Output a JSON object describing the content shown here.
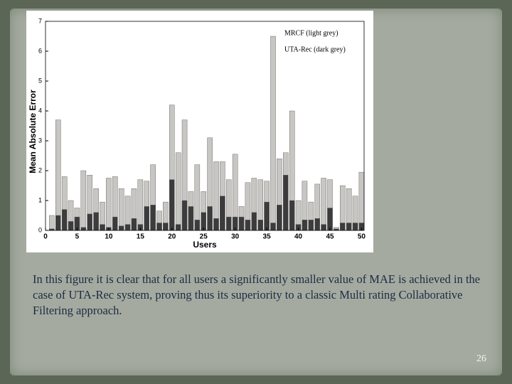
{
  "chart_data": {
    "type": "bar",
    "xlabel": "Users",
    "ylabel": "Mean Absolute Error",
    "x": [
      1,
      2,
      3,
      4,
      5,
      6,
      7,
      8,
      9,
      10,
      11,
      12,
      13,
      14,
      15,
      16,
      17,
      18,
      19,
      20,
      21,
      22,
      23,
      24,
      25,
      26,
      27,
      28,
      29,
      30,
      31,
      32,
      33,
      34,
      35,
      36,
      37,
      38,
      39,
      40,
      41,
      42,
      43,
      44,
      45,
      46,
      47,
      48,
      49,
      50
    ],
    "series": [
      {
        "name": "MRCF (light grey)",
        "color": "#c8c6c2",
        "values": [
          0.5,
          3.7,
          1.8,
          1.0,
          0.75,
          2.0,
          1.85,
          1.4,
          0.95,
          1.75,
          1.8,
          1.4,
          1.15,
          1.4,
          1.7,
          1.65,
          2.2,
          0.65,
          0.95,
          4.2,
          2.6,
          3.7,
          1.3,
          2.2,
          1.3,
          3.1,
          2.3,
          2.3,
          1.7,
          2.55,
          0.8,
          1.6,
          1.75,
          1.7,
          1.65,
          6.5,
          2.4,
          2.6,
          4.0,
          1.0,
          1.65,
          0.95,
          1.55,
          1.75,
          1.7,
          0.1,
          1.5,
          1.4,
          1.15,
          1.95
        ]
      },
      {
        "name": "UTA-Rec (dark grey)",
        "color": "#3c3c3c",
        "values": [
          0.05,
          0.5,
          0.7,
          0.3,
          0.45,
          0.1,
          0.55,
          0.6,
          0.2,
          0.1,
          0.45,
          0.15,
          0.2,
          0.4,
          0.2,
          0.8,
          0.85,
          0.25,
          0.25,
          1.7,
          0.2,
          1.0,
          0.8,
          0.35,
          0.6,
          0.8,
          0.4,
          1.15,
          0.45,
          0.45,
          0.45,
          0.35,
          0.6,
          0.35,
          0.95,
          0.25,
          0.85,
          1.85,
          1.0,
          0.2,
          0.35,
          0.35,
          0.4,
          0.2,
          0.75,
          0.05,
          0.25,
          0.25,
          0.25,
          0.25
        ]
      }
    ],
    "xlim": [
      0,
      50.4
    ],
    "ylim": [
      0,
      7
    ],
    "xticks": [
      0,
      5,
      10,
      15,
      20,
      25,
      30,
      35,
      40,
      45,
      50
    ],
    "yticks": [
      0,
      1,
      2,
      3,
      4,
      5,
      6,
      7
    ]
  },
  "slide": {
    "caption": "In this figure it is clear that for all users a significantly smaller value of MAE is achieved in the case of UTA-Rec system, proving thus its superiority to a classic Multi rating Collaborative Filtering approach.",
    "page_number": "26"
  }
}
